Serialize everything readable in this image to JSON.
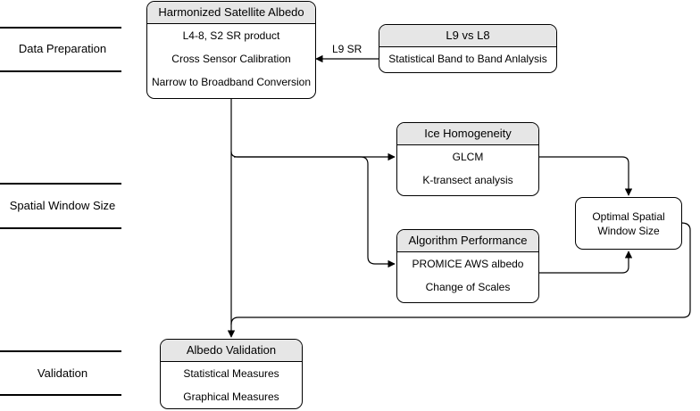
{
  "phases": {
    "data_preparation": "Data Preparation",
    "spatial_window_size": "Spatial Window Size",
    "validation": "Validation"
  },
  "nodes": {
    "harmonized": {
      "title": "Harmonized Satellite Albedo",
      "items": [
        "L4-8, S2 SR product",
        "Cross Sensor Calibration",
        "Narrow to Broadband Conversion"
      ]
    },
    "l9_vs_l8": {
      "title": "L9 vs L8",
      "items": [
        "Statistical Band to Band Anlalysis"
      ]
    },
    "ice_homogeneity": {
      "title": "Ice Homogeneity",
      "items": [
        "GLCM",
        "K-transect analysis"
      ]
    },
    "algorithm_performance": {
      "title": "Algorithm Performance",
      "items": [
        "PROMICE AWS albedo",
        "Change of Scales"
      ]
    },
    "optimal_window": {
      "label": "Optimal Spatial Window Size"
    },
    "albedo_validation": {
      "title": "Albedo Validation",
      "items": [
        "Statistical Measures",
        "Graphical Measures"
      ]
    }
  },
  "edges": {
    "l9_to_harmonized": "L9 SR"
  }
}
